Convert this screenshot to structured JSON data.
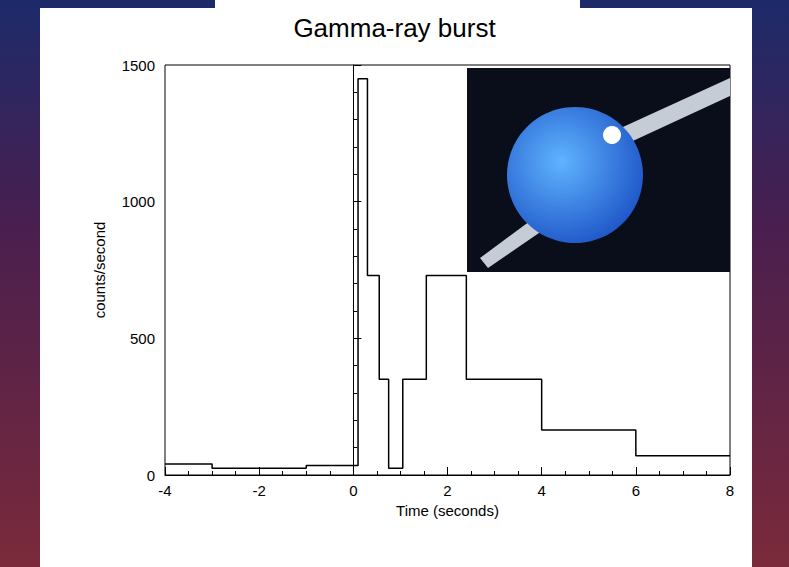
{
  "chart_data": {
    "type": "histogram",
    "title": "Gamma-ray burst",
    "x_label": "Time (seconds)",
    "y_label": "counts/second",
    "bins": [
      -4,
      -3,
      -1,
      0.1,
      0.3,
      0.55,
      0.75,
      1.05,
      1.55,
      2.4,
      4,
      6,
      8
    ],
    "values": [
      40,
      25,
      35,
      1450,
      730,
      350,
      25,
      350,
      730,
      350,
      165,
      70
    ],
    "color": "#000000",
    "xlim": [
      -4,
      8
    ],
    "ylim": [
      0,
      1500
    ],
    "xticks": [
      -4,
      -2,
      0,
      2,
      4,
      6,
      8
    ],
    "yticks": [
      0,
      500,
      1000,
      1500
    ],
    "grid": false
  }
}
